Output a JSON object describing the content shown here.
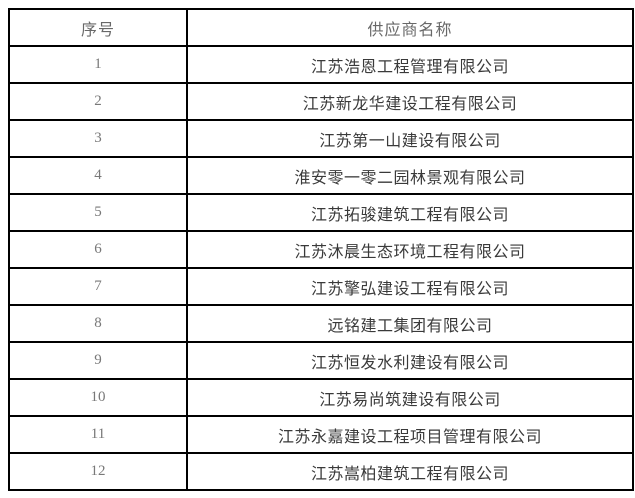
{
  "table": {
    "headers": {
      "no": "序号",
      "name": "供应商名称"
    },
    "rows": [
      {
        "no": "1",
        "name": "江苏浩恩工程管理有限公司"
      },
      {
        "no": "2",
        "name": "江苏新龙华建设工程有限公司"
      },
      {
        "no": "3",
        "name": "江苏第一山建设有限公司"
      },
      {
        "no": "4",
        "name": "淮安零一零二园林景观有限公司"
      },
      {
        "no": "5",
        "name": "江苏拓骏建筑工程有限公司"
      },
      {
        "no": "6",
        "name": "江苏沐晨生态环境工程有限公司"
      },
      {
        "no": "7",
        "name": "江苏擎弘建设工程有限公司"
      },
      {
        "no": "8",
        "name": "远铭建工集团有限公司"
      },
      {
        "no": "9",
        "name": "江苏恒发水利建设有限公司"
      },
      {
        "no": "10",
        "name": "江苏易尚筑建设有限公司"
      },
      {
        "no": "11",
        "name": "江苏永嘉建设工程项目管理有限公司"
      },
      {
        "no": "12",
        "name": "江苏嵩柏建筑工程有限公司"
      }
    ]
  }
}
